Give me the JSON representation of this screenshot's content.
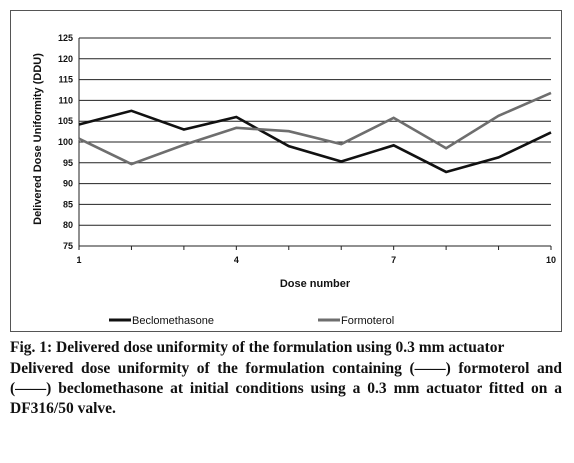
{
  "chart_data": {
    "type": "line",
    "x": [
      1,
      2,
      3,
      4,
      5,
      6,
      7,
      8,
      9,
      10
    ],
    "xticks": [
      1,
      4,
      7,
      10
    ],
    "xlabel": "Dose number",
    "ylabel": "Delivered Dose Uniformity (DDU)",
    "ylim": [
      75,
      125
    ],
    "yticks": [
      75,
      80,
      85,
      90,
      95,
      100,
      105,
      110,
      115,
      120,
      125
    ],
    "grid": "horizontal",
    "legend": "bottom",
    "series": [
      {
        "name": "Beclomethasone",
        "color": "#111111",
        "values": [
          104.2,
          107.5,
          103.0,
          106.0,
          99.0,
          95.3,
          99.2,
          92.8,
          96.3,
          102.3
        ]
      },
      {
        "name": "Formoterol",
        "color": "#6e6e6e",
        "values": [
          100.8,
          94.7,
          99.3,
          103.4,
          102.6,
          99.5,
          105.8,
          98.5,
          106.3,
          111.8
        ]
      }
    ]
  },
  "caption": {
    "title": "Fig. 1: Delivered dose uniformity of the formulation using 0.3 mm actuator",
    "description": "Delivered dose uniformity of the formulation containing (——) formoterol and (——) beclomethasone at initial conditions using a 0.3 mm actuator fitted on a DF316/50 valve."
  }
}
